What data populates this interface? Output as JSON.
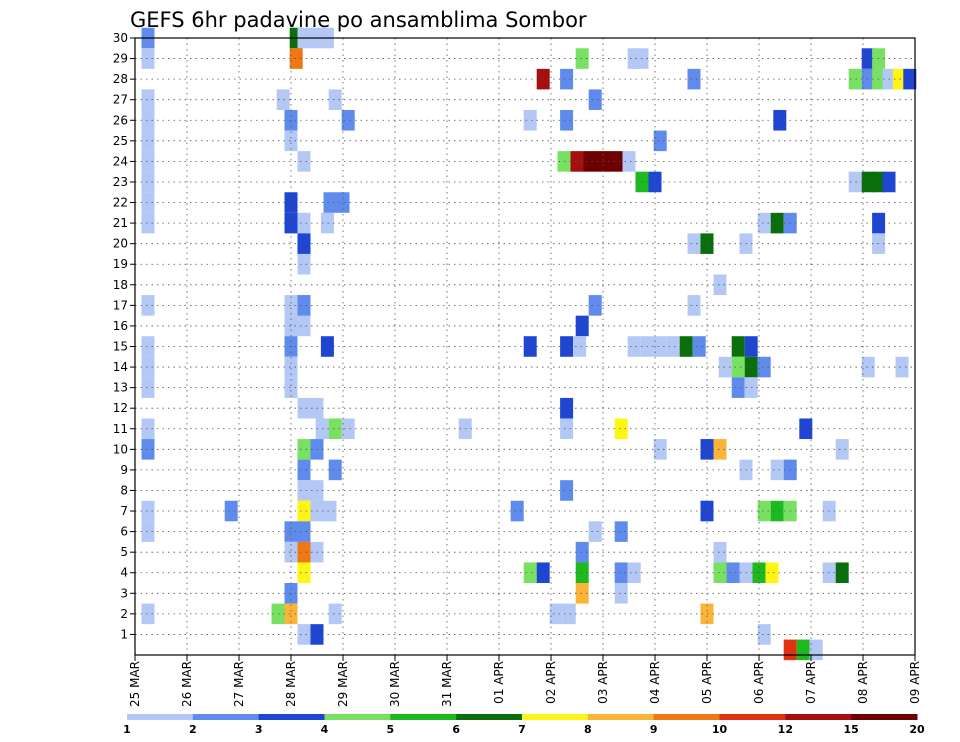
{
  "chart_data": {
    "type": "heatmap",
    "title": "GEFS 6hr padavine po ansamblima Sombor",
    "xlabel": "",
    "ylabel": "",
    "x_tick_labels": [
      "25 MAR",
      "26 MAR",
      "27 MAR",
      "28 MAR",
      "29 MAR",
      "30 MAR",
      "31 MAR",
      "01 APR",
      "02 APR",
      "03 APR",
      "04 APR",
      "05 APR",
      "06 APR",
      "07 APR",
      "08 APR",
      "09 APR"
    ],
    "xlim_days": [
      0,
      15
    ],
    "y_tick_labels": [
      "1",
      "2",
      "3",
      "4",
      "5",
      "6",
      "7",
      "8",
      "9",
      "10",
      "11",
      "12",
      "13",
      "14",
      "15",
      "16",
      "17",
      "18",
      "19",
      "20",
      "21",
      "22",
      "23",
      "24",
      "25",
      "26",
      "27",
      "28",
      "29",
      "30"
    ],
    "ylim": [
      0,
      30
    ],
    "grid": true,
    "colorbar": {
      "levels": [
        "1",
        "2",
        "3",
        "4",
        "5",
        "6",
        "7",
        "8",
        "9",
        "10",
        "12",
        "15",
        "20"
      ],
      "colors": [
        "#b4c8f5",
        "#5f8cec",
        "#1e46d2",
        "#78e164",
        "#1eb91e",
        "#0a6e0a",
        "#fff514",
        "#fab437",
        "#f07814",
        "#e13214",
        "#a50f0f",
        "#6e0000"
      ]
    },
    "cells": [
      [
        0.25,
        30,
        1
      ],
      [
        3.1,
        30,
        5
      ],
      [
        3.25,
        30,
        0
      ],
      [
        3.5,
        30,
        0
      ],
      [
        3.7,
        30,
        0
      ],
      [
        0.25,
        29,
        0
      ],
      [
        3.1,
        29,
        8
      ],
      [
        8.6,
        29,
        3
      ],
      [
        9.6,
        29,
        0
      ],
      [
        9.75,
        29,
        0
      ],
      [
        14.1,
        29,
        2
      ],
      [
        14.3,
        29,
        3
      ],
      [
        7.85,
        28,
        10
      ],
      [
        8.3,
        28,
        1
      ],
      [
        10.75,
        28,
        1
      ],
      [
        13.85,
        28,
        3
      ],
      [
        14.1,
        28,
        1
      ],
      [
        14.3,
        28,
        3
      ],
      [
        14.5,
        28,
        0
      ],
      [
        14.7,
        28,
        6
      ],
      [
        14.9,
        28,
        2
      ],
      [
        0.25,
        27,
        0
      ],
      [
        2.85,
        27,
        0
      ],
      [
        3.85,
        27,
        0
      ],
      [
        8.85,
        27,
        1
      ],
      [
        0.25,
        26,
        0
      ],
      [
        3.0,
        26,
        1
      ],
      [
        4.1,
        26,
        1
      ],
      [
        7.6,
        26,
        0
      ],
      [
        8.3,
        26,
        1
      ],
      [
        12.4,
        26,
        2
      ],
      [
        0.25,
        25,
        0
      ],
      [
        3.0,
        25,
        0
      ],
      [
        10.1,
        25,
        1
      ],
      [
        0.25,
        24,
        0
      ],
      [
        3.25,
        24,
        0
      ],
      [
        8.25,
        24,
        3
      ],
      [
        8.5,
        24,
        10
      ],
      [
        8.75,
        24,
        11
      ],
      [
        9.0,
        24,
        11
      ],
      [
        9.25,
        24,
        11
      ],
      [
        9.5,
        24,
        0
      ],
      [
        0.25,
        23,
        0
      ],
      [
        9.75,
        23,
        4
      ],
      [
        10.0,
        23,
        2
      ],
      [
        13.85,
        23,
        0
      ],
      [
        14.1,
        23,
        5
      ],
      [
        14.3,
        23,
        5
      ],
      [
        14.5,
        23,
        2
      ],
      [
        0.25,
        22,
        0
      ],
      [
        3.0,
        22,
        2
      ],
      [
        3.75,
        22,
        1
      ],
      [
        4.0,
        22,
        1
      ],
      [
        0.25,
        21,
        0
      ],
      [
        3.0,
        21,
        2
      ],
      [
        3.25,
        21,
        0
      ],
      [
        3.7,
        21,
        0
      ],
      [
        12.1,
        21,
        0
      ],
      [
        12.35,
        21,
        5
      ],
      [
        12.6,
        21,
        1
      ],
      [
        14.3,
        21,
        2
      ],
      [
        3.25,
        20,
        2
      ],
      [
        10.75,
        20,
        0
      ],
      [
        11.0,
        20,
        5
      ],
      [
        11.75,
        20,
        0
      ],
      [
        14.3,
        20,
        0
      ],
      [
        3.25,
        19,
        0
      ],
      [
        11.25,
        18,
        0
      ],
      [
        3.25,
        17,
        0
      ],
      [
        3.25,
        16,
        0
      ],
      [
        0.25,
        17,
        0
      ],
      [
        3.0,
        17,
        0
      ],
      [
        3.25,
        17,
        1
      ],
      [
        8.85,
        17,
        1
      ],
      [
        10.75,
        17,
        0
      ],
      [
        3.0,
        16,
        0
      ],
      [
        8.6,
        16,
        2
      ],
      [
        0.25,
        15,
        0
      ],
      [
        3.0,
        15,
        1
      ],
      [
        3.7,
        15,
        2
      ],
      [
        7.6,
        15,
        2
      ],
      [
        8.3,
        15,
        2
      ],
      [
        8.55,
        15,
        0
      ],
      [
        9.6,
        15,
        0
      ],
      [
        9.85,
        15,
        0
      ],
      [
        10.1,
        15,
        0
      ],
      [
        10.35,
        15,
        0
      ],
      [
        10.6,
        15,
        5
      ],
      [
        10.85,
        15,
        1
      ],
      [
        11.6,
        15,
        5
      ],
      [
        11.85,
        15,
        2
      ],
      [
        0.25,
        14,
        0
      ],
      [
        3.0,
        14,
        0
      ],
      [
        11.35,
        14,
        0
      ],
      [
        11.6,
        14,
        3
      ],
      [
        11.85,
        14,
        5
      ],
      [
        12.1,
        14,
        1
      ],
      [
        14.1,
        14,
        0
      ],
      [
        14.75,
        14,
        0
      ],
      [
        0.25,
        13,
        0
      ],
      [
        3.0,
        13,
        0
      ],
      [
        11.6,
        13,
        1
      ],
      [
        11.85,
        13,
        0
      ],
      [
        3.25,
        12,
        0
      ],
      [
        3.5,
        12,
        0
      ],
      [
        8.3,
        12,
        2
      ],
      [
        0.25,
        11,
        0
      ],
      [
        3.6,
        11,
        0
      ],
      [
        3.85,
        11,
        3
      ],
      [
        4.1,
        11,
        0
      ],
      [
        6.35,
        11,
        0
      ],
      [
        8.3,
        11,
        0
      ],
      [
        9.35,
        11,
        6
      ],
      [
        12.9,
        11,
        2
      ],
      [
        0.25,
        10,
        1
      ],
      [
        3.25,
        10,
        3
      ],
      [
        3.5,
        10,
        1
      ],
      [
        10.1,
        10,
        0
      ],
      [
        11.0,
        10,
        2
      ],
      [
        11.25,
        10,
        7
      ],
      [
        13.6,
        10,
        0
      ],
      [
        3.25,
        9,
        1
      ],
      [
        3.85,
        9,
        1
      ],
      [
        11.75,
        9,
        0
      ],
      [
        12.35,
        9,
        0
      ],
      [
        12.6,
        9,
        1
      ],
      [
        3.25,
        8,
        0
      ],
      [
        3.5,
        8,
        0
      ],
      [
        8.3,
        8,
        1
      ],
      [
        0.25,
        7,
        0
      ],
      [
        1.85,
        7,
        1
      ],
      [
        3.25,
        7,
        6
      ],
      [
        3.5,
        7,
        0
      ],
      [
        3.75,
        7,
        0
      ],
      [
        7.35,
        7,
        1
      ],
      [
        11.0,
        7,
        2
      ],
      [
        12.1,
        7,
        3
      ],
      [
        12.35,
        7,
        4
      ],
      [
        12.6,
        7,
        3
      ],
      [
        13.35,
        7,
        0
      ],
      [
        0.25,
        6,
        0
      ],
      [
        3.0,
        6,
        1
      ],
      [
        3.25,
        6,
        1
      ],
      [
        8.85,
        6,
        0
      ],
      [
        9.35,
        6,
        1
      ],
      [
        3.0,
        5,
        0
      ],
      [
        3.25,
        5,
        8
      ],
      [
        3.5,
        5,
        0
      ],
      [
        8.6,
        5,
        1
      ],
      [
        11.25,
        5,
        0
      ],
      [
        3.25,
        4,
        6
      ],
      [
        7.6,
        4,
        3
      ],
      [
        7.85,
        4,
        2
      ],
      [
        8.6,
        4,
        4
      ],
      [
        9.35,
        4,
        1
      ],
      [
        9.6,
        4,
        0
      ],
      [
        11.25,
        4,
        3
      ],
      [
        11.5,
        4,
        1
      ],
      [
        11.75,
        4,
        0
      ],
      [
        12.0,
        4,
        4
      ],
      [
        12.25,
        4,
        6
      ],
      [
        13.35,
        4,
        0
      ],
      [
        13.6,
        4,
        5
      ],
      [
        3.0,
        3,
        1
      ],
      [
        8.6,
        3,
        7
      ],
      [
        9.35,
        3,
        0
      ],
      [
        0.25,
        2,
        0
      ],
      [
        2.75,
        2,
        3
      ],
      [
        3.0,
        2,
        7
      ],
      [
        3.85,
        2,
        0
      ],
      [
        8.1,
        2,
        0
      ],
      [
        8.35,
        2,
        0
      ],
      [
        11.0,
        2,
        7
      ],
      [
        3.25,
        1,
        0
      ],
      [
        3.5,
        1,
        2
      ],
      [
        12.1,
        1,
        0
      ],
      [
        12.6,
        0.25,
        9
      ],
      [
        12.85,
        0.25,
        4
      ],
      [
        13.1,
        0.25,
        0
      ]
    ]
  }
}
